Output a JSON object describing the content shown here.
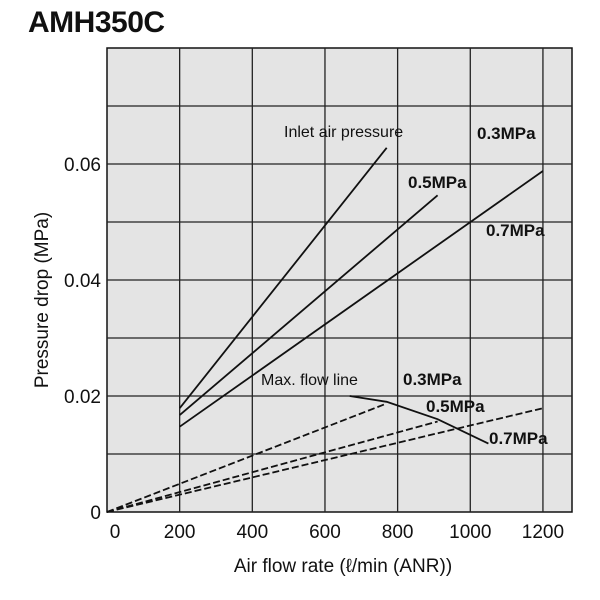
{
  "chart_data": {
    "type": "line",
    "title": "AMH350C",
    "xlabel": "Air flow rate (ℓ/min (ANR))",
    "ylabel": "Pressure drop (MPa)",
    "xlim": [
      0,
      1280
    ],
    "ylim": [
      0,
      0.08
    ],
    "grid": true,
    "x_ticks": [
      0,
      200,
      400,
      600,
      800,
      1000,
      1200
    ],
    "x_tick_labels": [
      "0",
      "200",
      "400",
      "600",
      "800",
      "1000",
      "1200"
    ],
    "y_ticks": [
      0,
      0.02,
      0.04,
      0.06
    ],
    "y_tick_labels": [
      "0",
      "0.02",
      "0.04",
      "0.06"
    ],
    "series": [
      {
        "name": "Inlet air pressure 0.3MPa",
        "label": "0.3MPa",
        "style": "solid",
        "points": [
          [
            200,
            0.0179
          ],
          [
            770,
            0.0628
          ]
        ]
      },
      {
        "name": "Inlet air pressure 0.5MPa",
        "label": "0.5MPa",
        "style": "solid",
        "points": [
          [
            200,
            0.0167
          ],
          [
            910,
            0.0546
          ]
        ]
      },
      {
        "name": "Inlet air pressure 0.7MPa",
        "label": "0.7MPa",
        "style": "solid",
        "points": [
          [
            200,
            0.0147
          ],
          [
            1200,
            0.0588
          ]
        ]
      },
      {
        "name": "Max. flow 0.3MPa",
        "label": "0.3MPa",
        "style": "dashed",
        "points": [
          [
            0,
            0
          ],
          [
            770,
            0.0187
          ]
        ]
      },
      {
        "name": "Max. flow 0.5MPa",
        "label": "0.5MPa",
        "style": "dashed",
        "points": [
          [
            0,
            0
          ],
          [
            910,
            0.0156
          ]
        ]
      },
      {
        "name": "Max. flow 0.7MPa",
        "label": "0.7MPa",
        "style": "dashed",
        "points": [
          [
            0,
            0
          ],
          [
            1200,
            0.0179
          ]
        ]
      },
      {
        "name": "Max. flow line",
        "label": "Max. flow line",
        "style": "solid",
        "points": [
          [
            668,
            0.02
          ],
          [
            770,
            0.019
          ],
          [
            910,
            0.016
          ],
          [
            1050,
            0.0118
          ]
        ]
      }
    ],
    "annotations": {
      "inlet": "Inlet air pressure",
      "maxflow": "Max. flow line"
    }
  }
}
